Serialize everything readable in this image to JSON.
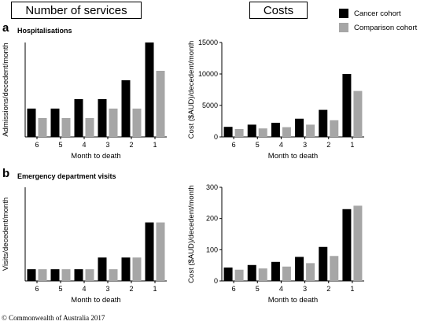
{
  "headers": {
    "left": "Number of services",
    "right": "Costs"
  },
  "legend": [
    {
      "label": "Cancer cohort",
      "color": "#000000"
    },
    {
      "label": "Comparison cohort",
      "color": "#a6a6a6"
    }
  ],
  "panels": [
    {
      "tag": "a",
      "subtitle": "Hospitalisations"
    },
    {
      "tag": "b",
      "subtitle": "Emergency department visits"
    }
  ],
  "copyright": "© Commonwealth of Australia 2017",
  "chart_data": [
    {
      "type": "bar",
      "title": "Hospitalisations",
      "xlabel": "Month to death",
      "ylabel": "Admissions/decedent/month",
      "categories": [
        "6",
        "5",
        "4",
        "3",
        "2",
        "1"
      ],
      "ylim": [
        0,
        1.0
      ],
      "yticks": [],
      "series": [
        {
          "name": "Cancer cohort",
          "color": "#000000",
          "values": [
            0.3,
            0.3,
            0.4,
            0.4,
            0.6,
            1.0
          ]
        },
        {
          "name": "Comparison cohort",
          "color": "#a6a6a6",
          "values": [
            0.2,
            0.2,
            0.2,
            0.3,
            0.3,
            0.7
          ]
        }
      ]
    },
    {
      "type": "bar",
      "title": "Hospitalisations",
      "xlabel": "Month to death",
      "ylabel": "Cost ($AUD)/decedent/month",
      "categories": [
        "6",
        "5",
        "4",
        "3",
        "2",
        "1"
      ],
      "ylim": [
        0,
        15000
      ],
      "yticks": [
        0,
        5000,
        10000,
        15000
      ],
      "series": [
        {
          "name": "Cancer cohort",
          "color": "#000000",
          "values": [
            1600,
            1950,
            2250,
            2900,
            4300,
            10000
          ]
        },
        {
          "name": "Comparison cohort",
          "color": "#a6a6a6",
          "values": [
            1250,
            1350,
            1550,
            1950,
            2650,
            7300
          ]
        }
      ]
    },
    {
      "type": "bar",
      "title": "Emergency department visits",
      "xlabel": "Month to death",
      "ylabel": "Visits/decedent/month",
      "categories": [
        "6",
        "5",
        "4",
        "3",
        "2",
        "1"
      ],
      "ylim": [
        0,
        0.8
      ],
      "yticks": [],
      "series": [
        {
          "name": "Cancer cohort",
          "color": "#000000",
          "values": [
            0.1,
            0.1,
            0.1,
            0.2,
            0.2,
            0.5
          ]
        },
        {
          "name": "Comparison cohort",
          "color": "#a6a6a6",
          "values": [
            0.1,
            0.1,
            0.1,
            0.1,
            0.2,
            0.5
          ]
        }
      ]
    },
    {
      "type": "bar",
      "title": "Emergency department visits",
      "xlabel": "Month to death",
      "ylabel": "Cost ($AUD)/decedent/month",
      "categories": [
        "6",
        "5",
        "4",
        "3",
        "2",
        "1"
      ],
      "ylim": [
        0,
        300
      ],
      "yticks": [
        0,
        100,
        200,
        300
      ],
      "series": [
        {
          "name": "Cancer cohort",
          "color": "#000000",
          "values": [
            43,
            51,
            61,
            77,
            109,
            230
          ]
        },
        {
          "name": "Comparison cohort",
          "color": "#a6a6a6",
          "values": [
            36,
            40,
            46,
            57,
            80,
            241
          ]
        }
      ]
    }
  ]
}
